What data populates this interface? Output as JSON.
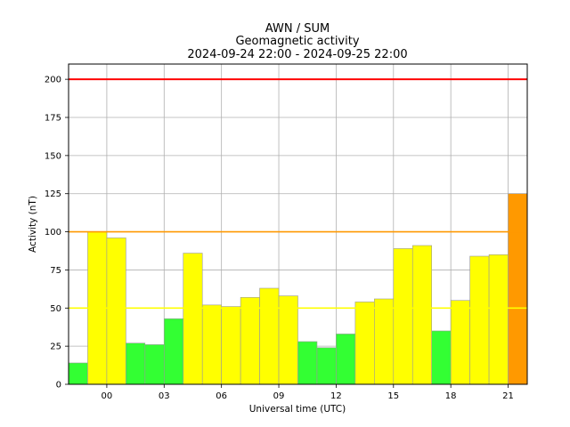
{
  "chart_data": {
    "type": "bar",
    "title": [
      "AWN / SUM",
      "Geomagnetic activity",
      "2024-09-24 22:00 - 2024-09-25 22:00"
    ],
    "xlabel": "Universal time (UTC)",
    "ylabel": "Activity (nT)",
    "xlim": [
      -2,
      22
    ],
    "ylim": [
      0,
      210
    ],
    "x_ticks": [
      0,
      3,
      6,
      9,
      12,
      15,
      18,
      21
    ],
    "x_tick_labels": [
      "00",
      "03",
      "06",
      "09",
      "12",
      "15",
      "18",
      "21"
    ],
    "y_ticks": [
      0,
      25,
      50,
      75,
      100,
      125,
      150,
      175,
      200
    ],
    "y_tick_labels": [
      "0",
      "25",
      "50",
      "75",
      "100",
      "125",
      "150",
      "175",
      "200"
    ],
    "grid": true,
    "bar_start_hours": [
      -2,
      -1,
      0,
      1,
      2,
      3,
      4,
      5,
      6,
      7,
      8,
      9,
      10,
      11,
      12,
      13,
      14,
      15,
      16,
      17,
      18,
      19,
      20,
      21
    ],
    "values": [
      14,
      100,
      96,
      27,
      26,
      43,
      86,
      52,
      51,
      57,
      63,
      58,
      28,
      24,
      33,
      54,
      56,
      89,
      91,
      35,
      55,
      84,
      85,
      125
    ],
    "threshold_lines": [
      {
        "value": 50,
        "color": "#ffff00"
      },
      {
        "value": 100,
        "color": "#ff9900"
      },
      {
        "value": 200,
        "color": "#ff0000"
      }
    ],
    "level_colors": {
      "quiet": "#33ff33",
      "active": "#ffff00",
      "storm": "#ff9900"
    }
  }
}
